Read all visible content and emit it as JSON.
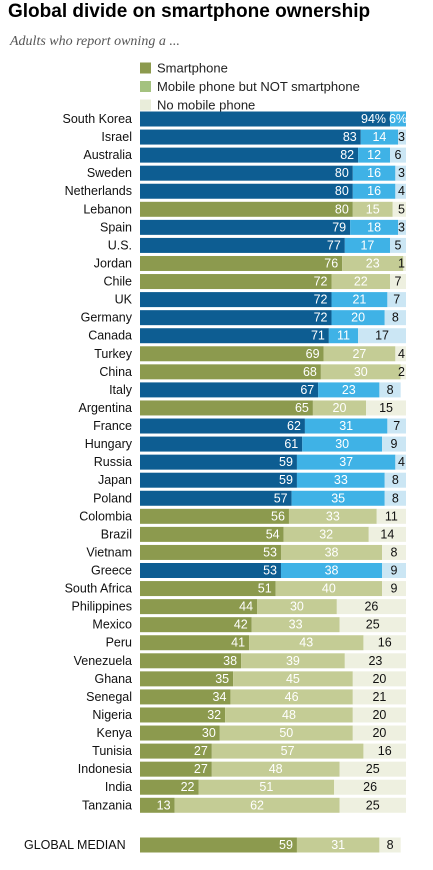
{
  "title": "Global divide on smartphone ownership",
  "subtitle": "Adults who report owning a ...",
  "chart_data": {
    "type": "bar",
    "stacked": true,
    "orientation": "horizontal",
    "legend": [
      {
        "label": "Smartphone",
        "color": "#8c9a4e"
      },
      {
        "label": "Mobile phone but NOT smartphone",
        "color": "#a4c27f"
      },
      {
        "label": "No mobile phone",
        "color": "#e9edda"
      }
    ],
    "legend_position": "top",
    "xlim": [
      0,
      100
    ],
    "series_names": [
      "Smartphone",
      "Mobile phone but NOT smartphone",
      "No mobile phone"
    ],
    "first_label_suffix": "%",
    "color_groups": {
      "blue": [
        "#0d5d92",
        "#3fb2e6",
        "#cbe6f4"
      ],
      "olive": [
        "#8c9a4e",
        "#c4cc95",
        "#eef0e0"
      ]
    },
    "rows": [
      {
        "label": "South Korea",
        "values": [
          94,
          6,
          0
        ],
        "labels": [
          "94",
          "6",
          ""
        ],
        "group": "blue"
      },
      {
        "label": "Israel",
        "values": [
          83,
          14,
          3
        ],
        "labels": [
          "83",
          "14",
          "3"
        ],
        "group": "blue"
      },
      {
        "label": "Australia",
        "values": [
          82,
          12,
          6
        ],
        "labels": [
          "82",
          "12",
          "6"
        ],
        "group": "blue"
      },
      {
        "label": "Sweden",
        "values": [
          80,
          16,
          3
        ],
        "labels": [
          "80",
          "16",
          "3"
        ],
        "group": "blue"
      },
      {
        "label": "Netherlands",
        "values": [
          80,
          16,
          4
        ],
        "labels": [
          "80",
          "16",
          "4"
        ],
        "group": "blue"
      },
      {
        "label": "Lebanon",
        "values": [
          80,
          15,
          5
        ],
        "labels": [
          "80",
          "15",
          "5"
        ],
        "group": "olive"
      },
      {
        "label": "Spain",
        "values": [
          79,
          18,
          3
        ],
        "labels": [
          "79",
          "18",
          "3"
        ],
        "group": "blue"
      },
      {
        "label": "U.S.",
        "values": [
          77,
          17,
          5
        ],
        "labels": [
          "77",
          "17",
          "5"
        ],
        "group": "blue"
      },
      {
        "label": "Jordan",
        "values": [
          76,
          23,
          1
        ],
        "labels": [
          "76",
          "23",
          "1"
        ],
        "group": "olive"
      },
      {
        "label": "Chile",
        "values": [
          72,
          22,
          7
        ],
        "labels": [
          "72",
          "22",
          "7"
        ],
        "group": "olive"
      },
      {
        "label": "UK",
        "values": [
          72,
          21,
          7
        ],
        "labels": [
          "72",
          "21",
          "7"
        ],
        "group": "blue"
      },
      {
        "label": "Germany",
        "values": [
          72,
          20,
          8
        ],
        "labels": [
          "72",
          "20",
          "8"
        ],
        "group": "blue"
      },
      {
        "label": "Canada",
        "values": [
          71,
          11,
          17
        ],
        "labels": [
          "71",
          "11",
          "17"
        ],
        "group": "blue"
      },
      {
        "label": "Turkey",
        "values": [
          69,
          27,
          4
        ],
        "labels": [
          "69",
          "27",
          "4"
        ],
        "group": "olive"
      },
      {
        "label": "China",
        "values": [
          68,
          30,
          2
        ],
        "labels": [
          "68",
          "30",
          "2"
        ],
        "group": "olive"
      },
      {
        "label": "Italy",
        "values": [
          67,
          23,
          8
        ],
        "labels": [
          "67",
          "23",
          "8"
        ],
        "group": "blue"
      },
      {
        "label": "Argentina",
        "values": [
          65,
          20,
          15
        ],
        "labels": [
          "65",
          "20",
          "15"
        ],
        "group": "olive"
      },
      {
        "label": "France",
        "values": [
          62,
          31,
          7
        ],
        "labels": [
          "62",
          "31",
          "7"
        ],
        "group": "blue"
      },
      {
        "label": "Hungary",
        "values": [
          61,
          30,
          9
        ],
        "labels": [
          "61",
          "30",
          "9"
        ],
        "group": "blue"
      },
      {
        "label": "Russia",
        "values": [
          59,
          37,
          4
        ],
        "labels": [
          "59",
          "37",
          "4"
        ],
        "group": "blue"
      },
      {
        "label": "Japan",
        "values": [
          59,
          33,
          8
        ],
        "labels": [
          "59",
          "33",
          "8"
        ],
        "group": "blue"
      },
      {
        "label": "Poland",
        "values": [
          57,
          35,
          8
        ],
        "labels": [
          "57",
          "35",
          "8"
        ],
        "group": "blue"
      },
      {
        "label": "Colombia",
        "values": [
          56,
          33,
          11
        ],
        "labels": [
          "56",
          "33",
          "11"
        ],
        "group": "olive"
      },
      {
        "label": "Brazil",
        "values": [
          54,
          32,
          14
        ],
        "labels": [
          "54",
          "32",
          "14"
        ],
        "group": "olive"
      },
      {
        "label": "Vietnam",
        "values": [
          53,
          38,
          8
        ],
        "labels": [
          "53",
          "38",
          "8"
        ],
        "group": "olive"
      },
      {
        "label": "Greece",
        "values": [
          53,
          38,
          9
        ],
        "labels": [
          "53",
          "38",
          "9"
        ],
        "group": "blue"
      },
      {
        "label": "South Africa",
        "values": [
          51,
          40,
          9
        ],
        "labels": [
          "51",
          "40",
          "9"
        ],
        "group": "olive"
      },
      {
        "label": "Philippines",
        "values": [
          44,
          30,
          26
        ],
        "labels": [
          "44",
          "30",
          "26"
        ],
        "group": "olive"
      },
      {
        "label": "Mexico",
        "values": [
          42,
          33,
          25
        ],
        "labels": [
          "42",
          "33",
          "25"
        ],
        "group": "olive"
      },
      {
        "label": "Peru",
        "values": [
          41,
          43,
          16
        ],
        "labels": [
          "41",
          "43",
          "16"
        ],
        "group": "olive"
      },
      {
        "label": "Venezuela",
        "values": [
          38,
          39,
          23
        ],
        "labels": [
          "38",
          "39",
          "23"
        ],
        "group": "olive"
      },
      {
        "label": "Ghana",
        "values": [
          35,
          45,
          20
        ],
        "labels": [
          "35",
          "45",
          "20"
        ],
        "group": "olive"
      },
      {
        "label": "Senegal",
        "values": [
          34,
          46,
          21
        ],
        "labels": [
          "34",
          "46",
          "21"
        ],
        "group": "olive"
      },
      {
        "label": "Nigeria",
        "values": [
          32,
          48,
          20
        ],
        "labels": [
          "32",
          "48",
          "20"
        ],
        "group": "olive"
      },
      {
        "label": "Kenya",
        "values": [
          30,
          50,
          20
        ],
        "labels": [
          "30",
          "50",
          "20"
        ],
        "group": "olive"
      },
      {
        "label": "Tunisia",
        "values": [
          27,
          57,
          16
        ],
        "labels": [
          "27",
          "57",
          "16"
        ],
        "group": "olive"
      },
      {
        "label": "Indonesia",
        "values": [
          27,
          48,
          25
        ],
        "labels": [
          "27",
          "48",
          "25"
        ],
        "group": "olive"
      },
      {
        "label": "India",
        "values": [
          22,
          51,
          26
        ],
        "labels": [
          "22",
          "51",
          "26"
        ],
        "group": "olive"
      },
      {
        "label": "Tanzania",
        "values": [
          13,
          62,
          25
        ],
        "labels": [
          "13",
          "62",
          "25"
        ],
        "group": "olive"
      }
    ],
    "median": {
      "label": "GLOBAL MEDIAN",
      "values": [
        59,
        31,
        8
      ],
      "labels": [
        "59",
        "31",
        "8"
      ],
      "group": "olive"
    }
  }
}
